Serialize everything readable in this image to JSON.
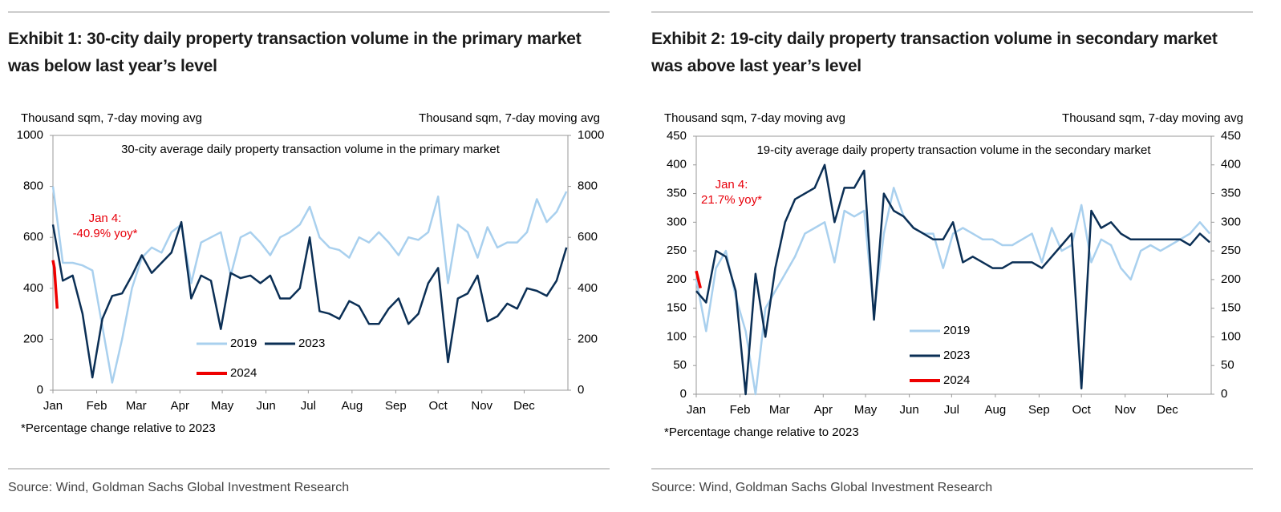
{
  "chart_data": [
    {
      "type": "line",
      "title": "Exhibit 1: 30-city daily property transaction volume in the primary market was below last year’s level",
      "subtitle": "30-city average daily property transaction volume in the primary market",
      "ylabel": "Thousand sqm, 7-day moving avg",
      "y2label": "Thousand sqm, 7-day moving avg",
      "annotation": [
        "Jan 4:",
        "-40.9% yoy*"
      ],
      "annotation_color": "#e8000b",
      "note": "*Percentage change relative to 2023",
      "source": "Source: Wind, Goldman Sachs Global Investment Research",
      "xlim": [
        0,
        365
      ],
      "xticks": [
        {
          "value": 0,
          "label": "Jan"
        },
        {
          "value": 31,
          "label": "Feb"
        },
        {
          "value": 59,
          "label": "Mar"
        },
        {
          "value": 90,
          "label": "Apr"
        },
        {
          "value": 120,
          "label": "May"
        },
        {
          "value": 151,
          "label": "Jun"
        },
        {
          "value": 181,
          "label": "Jul"
        },
        {
          "value": 212,
          "label": "Aug"
        },
        {
          "value": 243,
          "label": "Sep"
        },
        {
          "value": 273,
          "label": "Oct"
        },
        {
          "value": 304,
          "label": "Nov"
        },
        {
          "value": 334,
          "label": "Dec"
        }
      ],
      "ylim": [
        0,
        1000
      ],
      "yticks": [
        0,
        200,
        400,
        600,
        800,
        1000
      ],
      "y2lim": [
        0,
        1000
      ],
      "y2ticks": [
        0,
        200,
        400,
        600,
        800,
        1000
      ],
      "x": [
        0,
        7,
        14,
        21,
        28,
        35,
        42,
        49,
        56,
        63,
        70,
        77,
        84,
        91,
        98,
        105,
        112,
        119,
        126,
        133,
        140,
        147,
        154,
        161,
        168,
        175,
        182,
        189,
        196,
        203,
        210,
        217,
        224,
        231,
        238,
        245,
        252,
        259,
        266,
        273,
        280,
        287,
        294,
        301,
        308,
        315,
        322,
        329,
        336,
        343,
        350,
        357,
        364
      ],
      "series": [
        {
          "name": "2019",
          "color": "#a9d0ee",
          "values": [
            800,
            500,
            500,
            490,
            470,
            250,
            30,
            200,
            400,
            520,
            560,
            540,
            620,
            650,
            420,
            580,
            600,
            620,
            450,
            600,
            620,
            580,
            530,
            600,
            620,
            650,
            720,
            600,
            560,
            550,
            520,
            600,
            580,
            620,
            580,
            530,
            600,
            590,
            620,
            760,
            420,
            650,
            620,
            520,
            640,
            560,
            580,
            580,
            620,
            750,
            660,
            700,
            780
          ]
        },
        {
          "name": "2023",
          "color": "#0b2f55",
          "values": [
            650,
            430,
            450,
            300,
            50,
            280,
            370,
            380,
            450,
            530,
            460,
            500,
            540,
            660,
            360,
            450,
            430,
            240,
            460,
            440,
            450,
            420,
            450,
            360,
            360,
            400,
            600,
            310,
            300,
            280,
            350,
            330,
            260,
            260,
            320,
            360,
            260,
            300,
            420,
            480,
            110,
            360,
            380,
            450,
            270,
            290,
            340,
            320,
            400,
            390,
            370,
            430,
            560
          ]
        },
        {
          "name": "2024",
          "color": "#ee0000",
          "x": [
            0,
            1,
            2,
            3
          ],
          "values": [
            510,
            480,
            400,
            320
          ]
        }
      ]
    },
    {
      "type": "line",
      "title": "Exhibit 2: 19-city daily property transaction volume in secondary market was above last year’s level",
      "subtitle": "19-city average daily property transaction volume in the secondary market",
      "ylabel": "Thousand sqm, 7-day moving avg",
      "y2label": "Thousand sqm, 7-day moving avg",
      "annotation": [
        "Jan 4:",
        "21.7% yoy*"
      ],
      "annotation_color": "#e8000b",
      "note": "*Percentage change relative to 2023",
      "source": "Source: Wind, Goldman Sachs Global Investment Research",
      "xlim": [
        0,
        365
      ],
      "xticks": [
        {
          "value": 0,
          "label": "Jan"
        },
        {
          "value": 31,
          "label": "Feb"
        },
        {
          "value": 59,
          "label": "Mar"
        },
        {
          "value": 90,
          "label": "Apr"
        },
        {
          "value": 120,
          "label": "May"
        },
        {
          "value": 151,
          "label": "Jun"
        },
        {
          "value": 181,
          "label": "Jul"
        },
        {
          "value": 212,
          "label": "Aug"
        },
        {
          "value": 243,
          "label": "Sep"
        },
        {
          "value": 273,
          "label": "Oct"
        },
        {
          "value": 304,
          "label": "Nov"
        },
        {
          "value": 334,
          "label": "Dec"
        }
      ],
      "ylim": [
        0,
        450
      ],
      "yticks": [
        0,
        50,
        100,
        150,
        200,
        250,
        300,
        350,
        400,
        450
      ],
      "y2lim": [
        0,
        450
      ],
      "y2ticks": [
        0,
        50,
        100,
        150,
        200,
        250,
        300,
        350,
        400,
        450
      ],
      "x": [
        0,
        7,
        14,
        21,
        28,
        35,
        42,
        49,
        56,
        63,
        70,
        77,
        84,
        91,
        98,
        105,
        112,
        119,
        126,
        133,
        140,
        147,
        154,
        161,
        168,
        175,
        182,
        189,
        196,
        203,
        210,
        217,
        224,
        231,
        238,
        245,
        252,
        259,
        266,
        273,
        280,
        287,
        294,
        301,
        308,
        315,
        322,
        329,
        336,
        343,
        350,
        357,
        364
      ],
      "series": [
        {
          "name": "2019",
          "color": "#a9d0ee",
          "values": [
            200,
            110,
            220,
            250,
            170,
            110,
            0,
            150,
            180,
            210,
            240,
            280,
            290,
            300,
            230,
            320,
            310,
            320,
            140,
            280,
            360,
            310,
            290,
            280,
            280,
            220,
            280,
            290,
            280,
            270,
            270,
            260,
            260,
            270,
            280,
            230,
            290,
            250,
            260,
            330,
            230,
            270,
            260,
            220,
            200,
            250,
            260,
            250,
            260,
            270,
            280,
            300,
            280
          ]
        },
        {
          "name": "2023",
          "color": "#0b2f55",
          "values": [
            180,
            160,
            250,
            240,
            180,
            0,
            210,
            100,
            220,
            300,
            340,
            350,
            360,
            400,
            300,
            360,
            360,
            390,
            130,
            350,
            320,
            310,
            290,
            280,
            270,
            270,
            300,
            230,
            240,
            230,
            220,
            220,
            230,
            230,
            230,
            220,
            240,
            260,
            280,
            10,
            320,
            290,
            300,
            280,
            270,
            270,
            270,
            270,
            270,
            270,
            260,
            280,
            265
          ]
        },
        {
          "name": "2024",
          "color": "#ee0000",
          "x": [
            0,
            1,
            2,
            3
          ],
          "values": [
            215,
            205,
            195,
            185
          ]
        }
      ]
    }
  ]
}
